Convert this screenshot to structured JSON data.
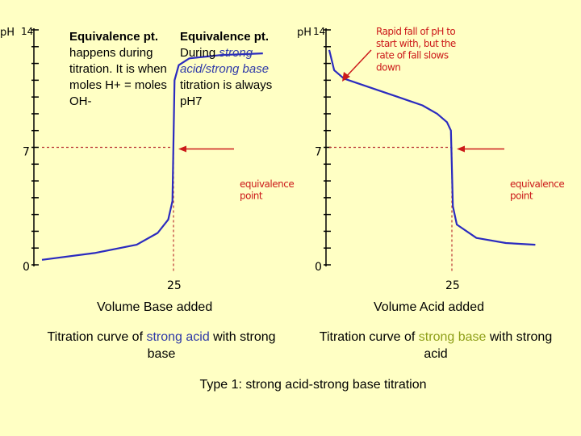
{
  "notes": {
    "left_title": "Equivalence pt.",
    "left_body": "happens during titration. It is when moles H+ = moles OH-",
    "right_title": "Equivalence pt.",
    "right_prefix": "During ",
    "right_italic": "strong acid/strong base",
    "right_suffix": " titration is always pH7"
  },
  "chart_data": [
    {
      "type": "line",
      "title": "Titration curve of strong acid with strong base",
      "title_parts": {
        "before": "Titration curve of ",
        "highlight": "strong acid",
        "after": " with strong base",
        "highlight_color": "#2f3aa8"
      },
      "xlabel": "Volume Base added",
      "ylabel": "pH",
      "y_top_label": "14",
      "y_tick_labels": [
        "7",
        "0"
      ],
      "x_tick_labels": [
        "25"
      ],
      "ylim": [
        0,
        14
      ],
      "equivalence": {
        "x": 25,
        "y": 7
      },
      "annotation": "equivalence point",
      "curve": {
        "x": [
          0,
          10,
          18,
          22,
          24,
          24.8,
          25.2,
          26,
          28,
          34,
          42
        ],
        "y": [
          0.3,
          0.7,
          1.2,
          1.9,
          2.7,
          3.8,
          11.0,
          11.9,
          12.3,
          12.5,
          12.6
        ]
      },
      "line_color": "#2b2bbf"
    },
    {
      "type": "line",
      "title": "Titration curve of strong base with strong acid",
      "title_parts": {
        "before": "Titration curve of ",
        "highlight": "strong base",
        "after": " with strong acid",
        "highlight_color": "#8fa019"
      },
      "xlabel": "Volume Acid added",
      "ylabel": "pH",
      "y_top_label": "14",
      "y_tick_labels": [
        "7",
        "0"
      ],
      "x_tick_labels": [
        "25"
      ],
      "ylim": [
        0,
        14
      ],
      "equivalence": {
        "x": 25,
        "y": 7
      },
      "annotation": "equivalence point",
      "annotation_top": "Rapid fall of pH to start with, but the rate of fall slows down",
      "curve": {
        "x": [
          0,
          1,
          3,
          8,
          14,
          19,
          22,
          24,
          24.8,
          25.2,
          26,
          30,
          36,
          42
        ],
        "y": [
          12.8,
          11.6,
          11.1,
          10.6,
          10.0,
          9.5,
          9.0,
          8.5,
          8.0,
          3.5,
          2.4,
          1.6,
          1.3,
          1.2
        ]
      },
      "line_color": "#2b2bbf"
    }
  ],
  "footer": "Type 1: strong acid-strong base titration",
  "colors": {
    "background": "#ffffc4",
    "curve": "#2b2bbf",
    "annotation": "#cc1a1a",
    "axis": "#000000"
  }
}
